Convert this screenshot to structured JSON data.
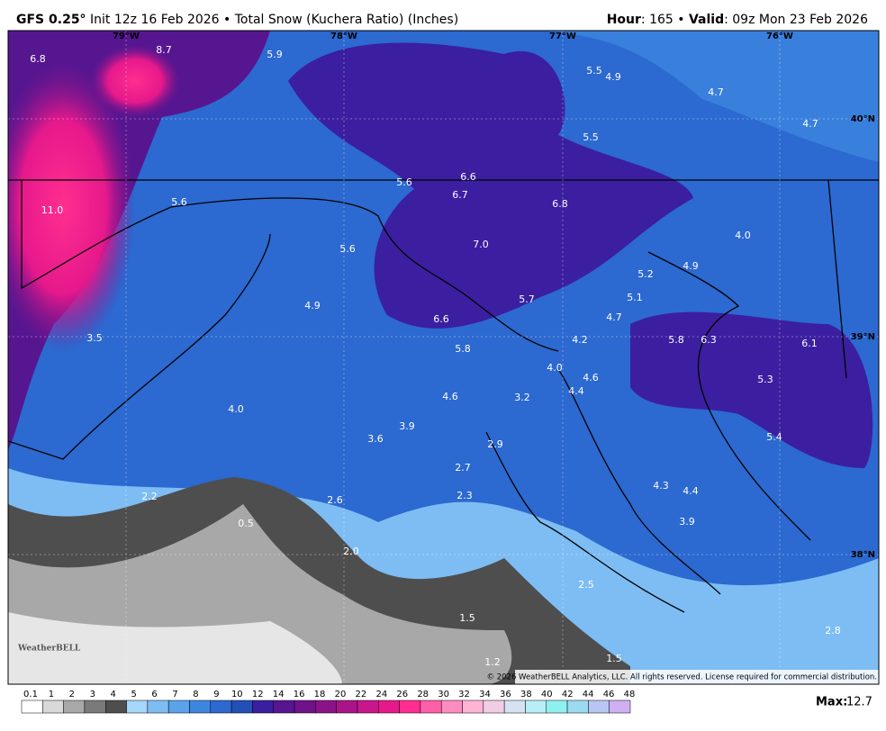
{
  "header": {
    "model": "GFS 0.25°",
    "init": "Init 12z 16 Feb 2026 • Total Snow (Kuchera Ratio) (Inches)",
    "hour_label": "Hour",
    "hour_text": ": 165 • ",
    "valid_label": "Valid",
    "valid_text": ": 09z Mon 23 Feb 2026"
  },
  "map": {
    "longitudes": [
      "79°W",
      "78°W",
      "77°W",
      "76°W"
    ],
    "latitudes": [
      "40°N",
      "39°N",
      "38°N"
    ],
    "labels": [
      "6.8",
      "8.7",
      "5.9",
      "5.5",
      "4.9",
      "4.7",
      "4.7",
      "5.5",
      "6.6",
      "5.6",
      "6.7",
      "6.8",
      "11.0",
      "5.6",
      "4.0",
      "7.0",
      "5.6",
      "4.9",
      "5.2",
      "5.1",
      "5.7",
      "4.9",
      "6.6",
      "4.7",
      "3.5",
      "5.8",
      "6.3",
      "6.1",
      "4.2",
      "5.8",
      "4.0",
      "4.6",
      "5.3",
      "4.4",
      "4.6",
      "3.2",
      "4.0",
      "3.9",
      "3.6",
      "5.4",
      "2.9",
      "2.7",
      "4.3",
      "4.4",
      "2.2",
      "2.3",
      "2.6",
      "0.5",
      "3.9",
      "2.0",
      "2.5",
      "1.5",
      "2.8",
      "1.5",
      "1.2"
    ],
    "copyright": "© 2026 WeatherBELL Analytics, LLC. All rights reserved. License required for commercial distribution.",
    "logo": "WeatherBELL"
  },
  "legend": {
    "levels": [
      "0.1",
      "1",
      "2",
      "3",
      "4",
      "5",
      "6",
      "7",
      "8",
      "9",
      "10",
      "12",
      "14",
      "16",
      "18",
      "20",
      "22",
      "24",
      "26",
      "28",
      "30",
      "32",
      "34",
      "36",
      "38",
      "40",
      "42",
      "44",
      "46",
      "48"
    ],
    "colors": [
      "#ffffff",
      "#d9d9d9",
      "#a8a8a8",
      "#7a7a7a",
      "#4e4e4e",
      "#a6d6fa",
      "#7dbdf4",
      "#5aa3ec",
      "#3d86e0",
      "#2c69d0",
      "#2350b6",
      "#3b1fa0",
      "#561690",
      "#70138a",
      "#8c128a",
      "#a9148b",
      "#c8168c",
      "#e6198c",
      "#ff2e8f",
      "#ff5ea8",
      "#ff8cc0",
      "#ffb4d6",
      "#f0cde4",
      "#d6e2f2",
      "#b8eef8",
      "#8ff0f0",
      "#9cdaf2",
      "#b8c6f4",
      "#cfb0f2"
    ],
    "max_label": "Max:",
    "max_value": "12.7"
  }
}
